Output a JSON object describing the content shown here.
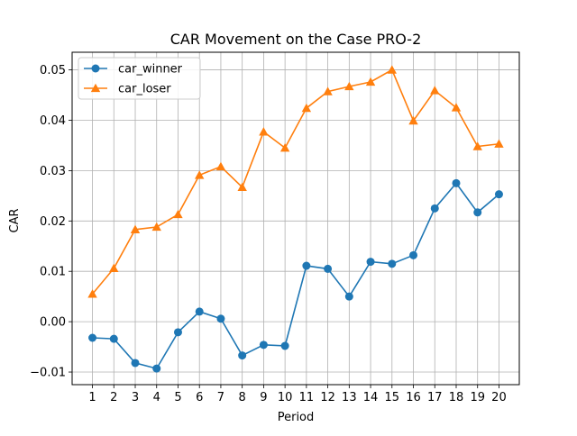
{
  "chart_data": {
    "type": "line",
    "title": "CAR Movement on the Case PRO-2",
    "xlabel": "Period",
    "ylabel": "CAR",
    "x": [
      1,
      2,
      3,
      4,
      5,
      6,
      7,
      8,
      9,
      10,
      11,
      12,
      13,
      14,
      15,
      16,
      17,
      18,
      19,
      20
    ],
    "xlim": [
      0.05,
      20.95
    ],
    "ylim": [
      -0.0125,
      0.0535
    ],
    "yticks": [
      -0.01,
      0.0,
      0.01,
      0.02,
      0.03,
      0.04,
      0.05
    ],
    "ytick_labels": [
      "−0.01",
      "0.00",
      "0.01",
      "0.02",
      "0.03",
      "0.04",
      "0.05"
    ],
    "grid": true,
    "legend_position": "top-left",
    "series": [
      {
        "name": "car_winner",
        "color": "#1f77b4",
        "marker": "circle",
        "values": [
          -0.0032,
          -0.0034,
          -0.0082,
          -0.0093,
          -0.0021,
          0.002,
          0.0006,
          -0.0067,
          -0.0046,
          -0.0048,
          0.0111,
          0.0105,
          0.005,
          0.0119,
          0.0115,
          0.0132,
          0.0225,
          0.0275,
          0.0217,
          0.0253
        ]
      },
      {
        "name": "car_loser",
        "color": "#ff7f0e",
        "marker": "triangle",
        "values": [
          0.0055,
          0.0106,
          0.0183,
          0.0188,
          0.0213,
          0.0291,
          0.0308,
          0.0267,
          0.0377,
          0.0345,
          0.0424,
          0.0457,
          0.0467,
          0.0476,
          0.05,
          0.0399,
          0.0459,
          0.0425,
          0.0348,
          0.0353
        ]
      }
    ]
  }
}
